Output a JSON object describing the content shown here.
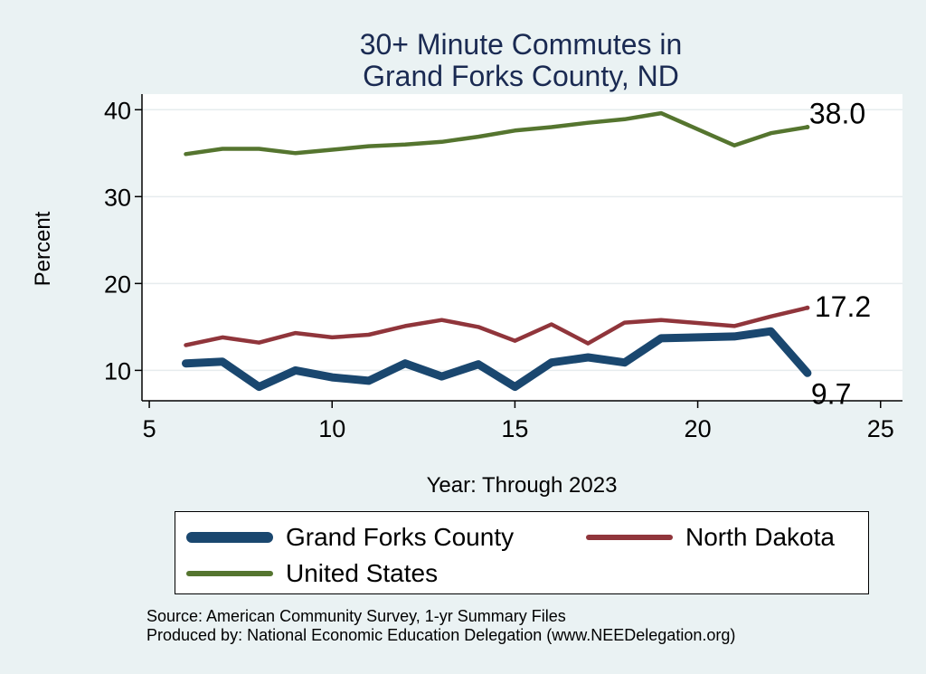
{
  "chart_data": {
    "type": "line",
    "title": [
      "30+ Minute Commutes in",
      "Grand Forks County, ND"
    ],
    "xlabel": "Year: Through 2023",
    "ylabel": "Percent",
    "xlim": [
      4.8,
      25.6
    ],
    "ylim": [
      6.5,
      41.8
    ],
    "xticks": [
      5,
      10,
      15,
      20,
      25
    ],
    "yticks": [
      10,
      20,
      30,
      40
    ],
    "grid": true,
    "series": [
      {
        "name": "Grand Forks County",
        "color": "#1a476f",
        "x": [
          6,
          7,
          8,
          9,
          10,
          11,
          12,
          13,
          14,
          15,
          16,
          17,
          18,
          19,
          21,
          22,
          23
        ],
        "values": [
          10.8,
          11.0,
          8.1,
          10.0,
          9.2,
          8.8,
          10.8,
          9.3,
          10.7,
          8.1,
          10.9,
          11.5,
          10.9,
          13.7,
          13.9,
          14.5,
          9.7
        ],
        "end_label": "9.7"
      },
      {
        "name": "North Dakota",
        "color": "#90353b",
        "x": [
          6,
          7,
          8,
          9,
          10,
          11,
          12,
          13,
          14,
          15,
          16,
          17,
          18,
          19,
          21,
          22,
          23
        ],
        "values": [
          12.9,
          13.8,
          13.2,
          14.3,
          13.8,
          14.1,
          15.1,
          15.8,
          15.0,
          13.4,
          15.3,
          13.1,
          15.5,
          15.8,
          15.1,
          16.2,
          17.2
        ],
        "end_label": "17.2"
      },
      {
        "name": "United States",
        "color": "#55752f",
        "x": [
          6,
          7,
          8,
          9,
          10,
          11,
          12,
          13,
          14,
          15,
          16,
          17,
          18,
          19,
          21,
          22,
          23
        ],
        "values": [
          34.9,
          35.5,
          35.5,
          35.0,
          35.4,
          35.8,
          36.0,
          36.3,
          36.9,
          37.6,
          38.0,
          38.5,
          38.9,
          39.6,
          35.9,
          37.3,
          38.0
        ],
        "end_label": "38.0"
      }
    ],
    "legend": {
      "position": "bottom",
      "items": [
        {
          "label": "Grand Forks County",
          "color": "#1a476f"
        },
        {
          "label": "North Dakota",
          "color": "#90353b"
        },
        {
          "label": "United States",
          "color": "#55752f"
        }
      ]
    }
  },
  "source": {
    "line1": "Source: American Community Survey, 1-yr Summary Files",
    "line2": "Produced by: National Economic Education Delegation (www.NEEDelegation.org)"
  }
}
